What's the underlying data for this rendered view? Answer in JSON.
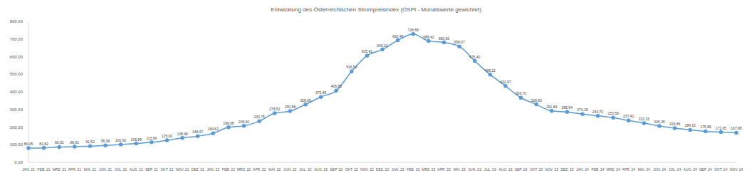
{
  "chart_data": {
    "type": "line",
    "title": "Entwicklung des Österreichischen Strompreisindex (ÖSPI - Monatswerte gewichtet)",
    "categories": [
      "JAN. 21",
      "FEB. 21",
      "MRZ. 21",
      "APR. 21",
      "MAI. 21",
      "JUN. 21",
      "JUL. 21",
      "AUG. 21",
      "SEP. 21",
      "OKT. 21",
      "NOV. 21",
      "DEZ. 21",
      "JAN. 22",
      "FEB. 22",
      "MRZ. 22",
      "APR. 22",
      "MAI. 22",
      "JUN. 22",
      "JUL. 22",
      "AUG. 22",
      "SEP. 22",
      "OKT. 22",
      "NOV. 22",
      "DEZ. 22",
      "JAN. 23",
      "FEB. 23",
      "MRZ. 23",
      "APR. 23",
      "MAI. 23",
      "JUN. 23",
      "JUL. 23",
      "AUG. 23",
      "SEP. 23",
      "OKT. 23",
      "NOV. 23",
      "DEZ. 23",
      "JAN. 24",
      "FEB. 24",
      "MRZ. 24",
      "APR. 24",
      "MAI. 24",
      "JUN. 24",
      "JUL. 24",
      "AUG. 24",
      "SEP. 24",
      "OKT. 24",
      "NOV. 24"
    ],
    "values": [
      80.45,
      81.82,
      86.92,
      88.81,
      91.52,
      95.99,
      100.92,
      106.89,
      113.66,
      125.0,
      138.46,
      148.67,
      164.62,
      199.08,
      206.6,
      233.75,
      278.52,
      290.58,
      328.69,
      370.85,
      406.85,
      516.52,
      605.41,
      640.1,
      692.48,
      728.68,
      688.42,
      680.65,
      658.07,
      575.4,
      498.22,
      432.97,
      366.7,
      328.83,
      291.84,
      285.94,
      274.15,
      263.7,
      253.58,
      237.41,
      222.15,
      206.35,
      193.86,
      184.15,
      175.98,
      171.65,
      167.88
    ],
    "value_labels": [
      "80,45",
      "81,82",
      "86,92",
      "88,81",
      "91,52",
      "95,99",
      "100,92",
      "106,89",
      "113,66",
      "125,00",
      "138,46",
      "148,67",
      "164,62",
      "199,08",
      "206,60",
      "233,75",
      "278,52",
      "290,58",
      "328,69",
      "370,85",
      "406,85",
      "516,52",
      "605,41",
      "640,10",
      "692,48",
      "728,68",
      "688,42",
      "680,65",
      "658,07",
      "575,40",
      "498,22",
      "432,97",
      "366,70",
      "328,83",
      "291,84",
      "285,94",
      "274,15",
      "263,70",
      "253,58",
      "237,41",
      "222,15",
      "206,35",
      "193,86",
      "184,15",
      "175,98",
      "171,65",
      "167,88"
    ],
    "color": "#5b9bd5",
    "marker": "circle",
    "data_labels": true,
    "grid": false,
    "ylim": [
      0,
      800
    ],
    "yticks": [
      {
        "value": 0,
        "label": "0,00"
      },
      {
        "value": 100,
        "label": "100,00"
      },
      {
        "value": 200,
        "label": "200,00"
      },
      {
        "value": 300,
        "label": "300,00"
      },
      {
        "value": 400,
        "label": "400,00"
      },
      {
        "value": 500,
        "label": "500,00"
      },
      {
        "value": 600,
        "label": "600,00"
      },
      {
        "value": 700,
        "label": "700,00"
      },
      {
        "value": 800,
        "label": "800,00"
      }
    ]
  }
}
